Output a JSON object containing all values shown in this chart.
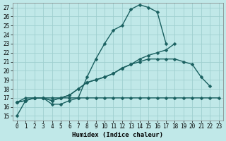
{
  "xlabel": "Humidex (Indice chaleur)",
  "ylabel": "",
  "xlim": [
    -0.5,
    23.5
  ],
  "ylim": [
    14.5,
    27.5
  ],
  "yticks": [
    15,
    16,
    17,
    18,
    19,
    20,
    21,
    22,
    23,
    24,
    25,
    26,
    27
  ],
  "xticks": [
    0,
    1,
    2,
    3,
    4,
    5,
    6,
    7,
    8,
    9,
    10,
    11,
    12,
    13,
    14,
    15,
    16,
    17,
    18,
    19,
    20,
    21,
    22,
    23
  ],
  "bg_color": "#c0e8e8",
  "grid_color": "#9fcfcf",
  "line_color": "#1a6060",
  "line_width": 1.0,
  "marker": "D",
  "marker_size": 2.5,
  "lines": [
    {
      "x": [
        0,
        1,
        2,
        3,
        4,
        5,
        6,
        7,
        8,
        9,
        10,
        11,
        12,
        13,
        14,
        15,
        16,
        17
      ],
      "y": [
        15.0,
        16.7,
        17.0,
        17.0,
        16.3,
        16.3,
        16.7,
        17.0,
        19.3,
        21.3,
        23.0,
        24.5,
        25.0,
        26.8,
        27.3,
        27.0,
        26.5,
        23.0
      ]
    },
    {
      "x": [
        0,
        1,
        2,
        3,
        4,
        5,
        6,
        7,
        8,
        9,
        10,
        11,
        12,
        13,
        14,
        15,
        16,
        17,
        18,
        19,
        20,
        21,
        22,
        23
      ],
      "y": [
        16.5,
        17.0,
        17.0,
        17.0,
        17.0,
        17.0,
        17.0,
        17.0,
        17.0,
        17.0,
        17.0,
        17.0,
        17.0,
        17.0,
        17.0,
        17.0,
        17.0,
        17.0,
        17.0,
        17.0,
        17.0,
        17.0,
        17.0,
        17.0
      ]
    },
    {
      "x": [
        0,
        1,
        2,
        3,
        4,
        5,
        6,
        7,
        8,
        9,
        10,
        11,
        12,
        13,
        14,
        15,
        16,
        17,
        18,
        19,
        20,
        21,
        22,
        23
      ],
      "y": [
        16.5,
        16.7,
        17.0,
        17.0,
        16.7,
        17.0,
        17.3,
        18.0,
        18.7,
        19.0,
        19.3,
        19.7,
        20.3,
        20.7,
        21.3,
        21.7,
        22.0,
        22.3,
        23.0,
        null,
        null,
        null,
        null,
        null
      ]
    },
    {
      "x": [
        0,
        1,
        2,
        3,
        4,
        5,
        6,
        7,
        8,
        9,
        10,
        11,
        12,
        13,
        14,
        15,
        16,
        17,
        18,
        19,
        20,
        21,
        22
      ],
      "y": [
        16.5,
        16.7,
        17.0,
        17.0,
        16.7,
        17.0,
        17.3,
        18.0,
        18.7,
        19.0,
        19.3,
        19.7,
        20.3,
        20.7,
        21.0,
        21.3,
        21.3,
        21.3,
        21.3,
        21.0,
        20.7,
        19.3,
        18.3
      ]
    }
  ]
}
